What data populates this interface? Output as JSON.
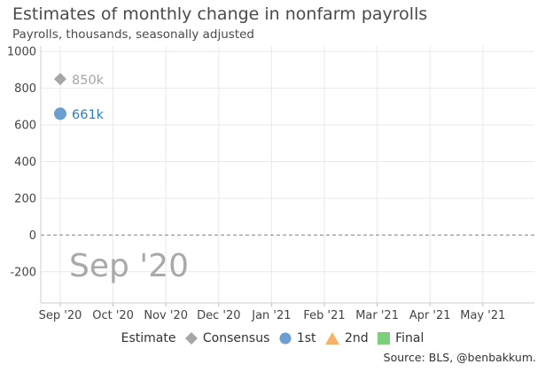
{
  "chart_data": {
    "type": "scatter",
    "title": "Estimates of monthly change in nonfarm payrolls",
    "subtitle": "Payrolls, thousands, seasonally adjusted",
    "categories": [
      "Sep '20",
      "Oct '20",
      "Nov '20",
      "Dec '20",
      "Jan '21",
      "Feb '21",
      "Mar '21",
      "Apr '21",
      "May '21"
    ],
    "yticks": [
      1000,
      800,
      600,
      400,
      200,
      0,
      -200
    ],
    "ylim": [
      -370,
      1030
    ],
    "grid": true,
    "legend_position": "bottom",
    "series": [
      {
        "name": "Consensus",
        "symbol": "diamond",
        "color": "#a6a6a6",
        "points": [
          {
            "category": "Sep '20",
            "value": 850,
            "label": "850k"
          }
        ]
      },
      {
        "name": "1st",
        "symbol": "circle",
        "color": "#6a9fcf",
        "label_color": "#2f7dbf",
        "points": [
          {
            "category": "Sep '20",
            "value": 661,
            "label": "661k"
          }
        ]
      },
      {
        "name": "2nd",
        "symbol": "triangle",
        "color": "#f6b26b",
        "points": []
      },
      {
        "name": "Final",
        "symbol": "square",
        "color": "#7ccf7c",
        "points": []
      }
    ],
    "watermark": "Sep '20"
  },
  "legend": {
    "title": "Estimate"
  },
  "source": "Source: BLS, @benbakkum."
}
